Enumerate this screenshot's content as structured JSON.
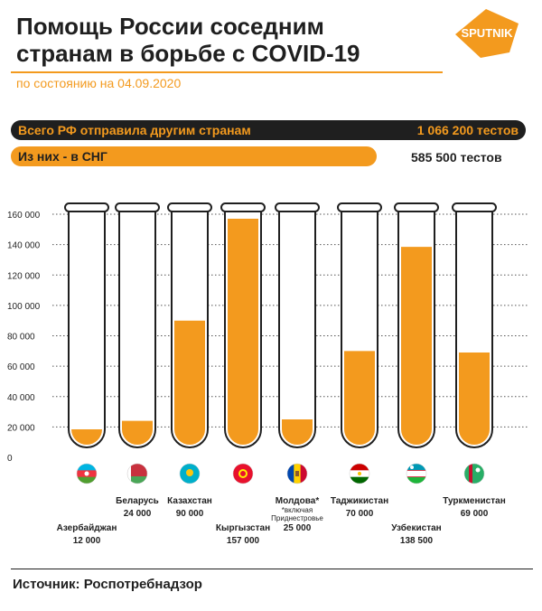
{
  "header": {
    "title_line1": "Помощь России соседним",
    "title_line2": "странам в борьбе с COVID-19",
    "date_line": "по состоянию на 04.09.2020",
    "logo_text": "SPUTNIK"
  },
  "summary": {
    "total_label": "Всего РФ отправила другим странам",
    "total_value": "1 066 200 тестов",
    "cis_label": "Из них - в СНГ",
    "cis_value": "585 500 тестов"
  },
  "colors": {
    "accent": "#f39a1e",
    "dark": "#1f1f1f"
  },
  "chart_data": {
    "type": "bar",
    "ylim": [
      0,
      160000
    ],
    "yticks": [
      "0",
      "20 000",
      "40 000",
      "60 000",
      "80 000",
      "100 000",
      "120 000",
      "140 000",
      "160 000"
    ],
    "ytick_values": [
      0,
      20000,
      40000,
      60000,
      80000,
      100000,
      120000,
      140000,
      160000
    ],
    "categories": [
      "Азербайджан",
      "Беларусь",
      "Казахстан",
      "Кыргызстан",
      "Молдова*",
      "Таджикистан",
      "Узбекистан",
      "Туркменистан"
    ],
    "value_labels": [
      "12 000",
      "24 000",
      "90 000",
      "157 000",
      "25 000",
      "70 000",
      "138 500",
      "69 000"
    ],
    "values": [
      12000,
      24000,
      90000,
      157000,
      25000,
      70000,
      138500,
      69000
    ],
    "note": [
      "*включая",
      "Приднестровье"
    ],
    "flags": [
      "flag-azerbaijan",
      "flag-belarus",
      "flag-kazakhstan",
      "flag-kyrgyzstan",
      "flag-moldova",
      "flag-tajikistan",
      "flag-uzbekistan",
      "flag-turkmenistan"
    ]
  },
  "footer": {
    "source": "Источник: Роспотребнадзор"
  }
}
